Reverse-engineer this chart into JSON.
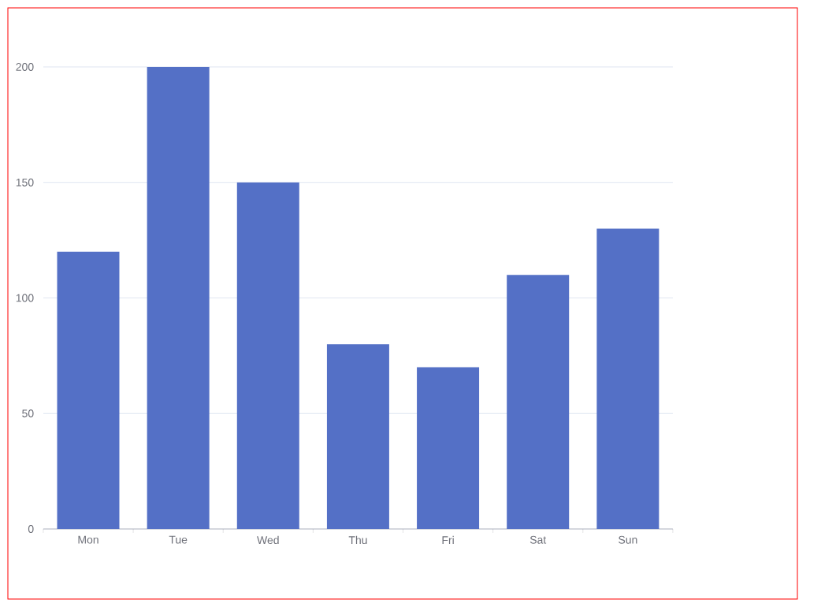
{
  "chart_data": {
    "type": "bar",
    "categories": [
      "Mon",
      "Tue",
      "Wed",
      "Thu",
      "Fri",
      "Sat",
      "Sun"
    ],
    "values": [
      120,
      200,
      150,
      80,
      70,
      110,
      130
    ],
    "color": "#5470c6",
    "ylim": [
      0,
      200
    ],
    "yticks": [
      0,
      50,
      100,
      150,
      200
    ],
    "grid": "y"
  }
}
